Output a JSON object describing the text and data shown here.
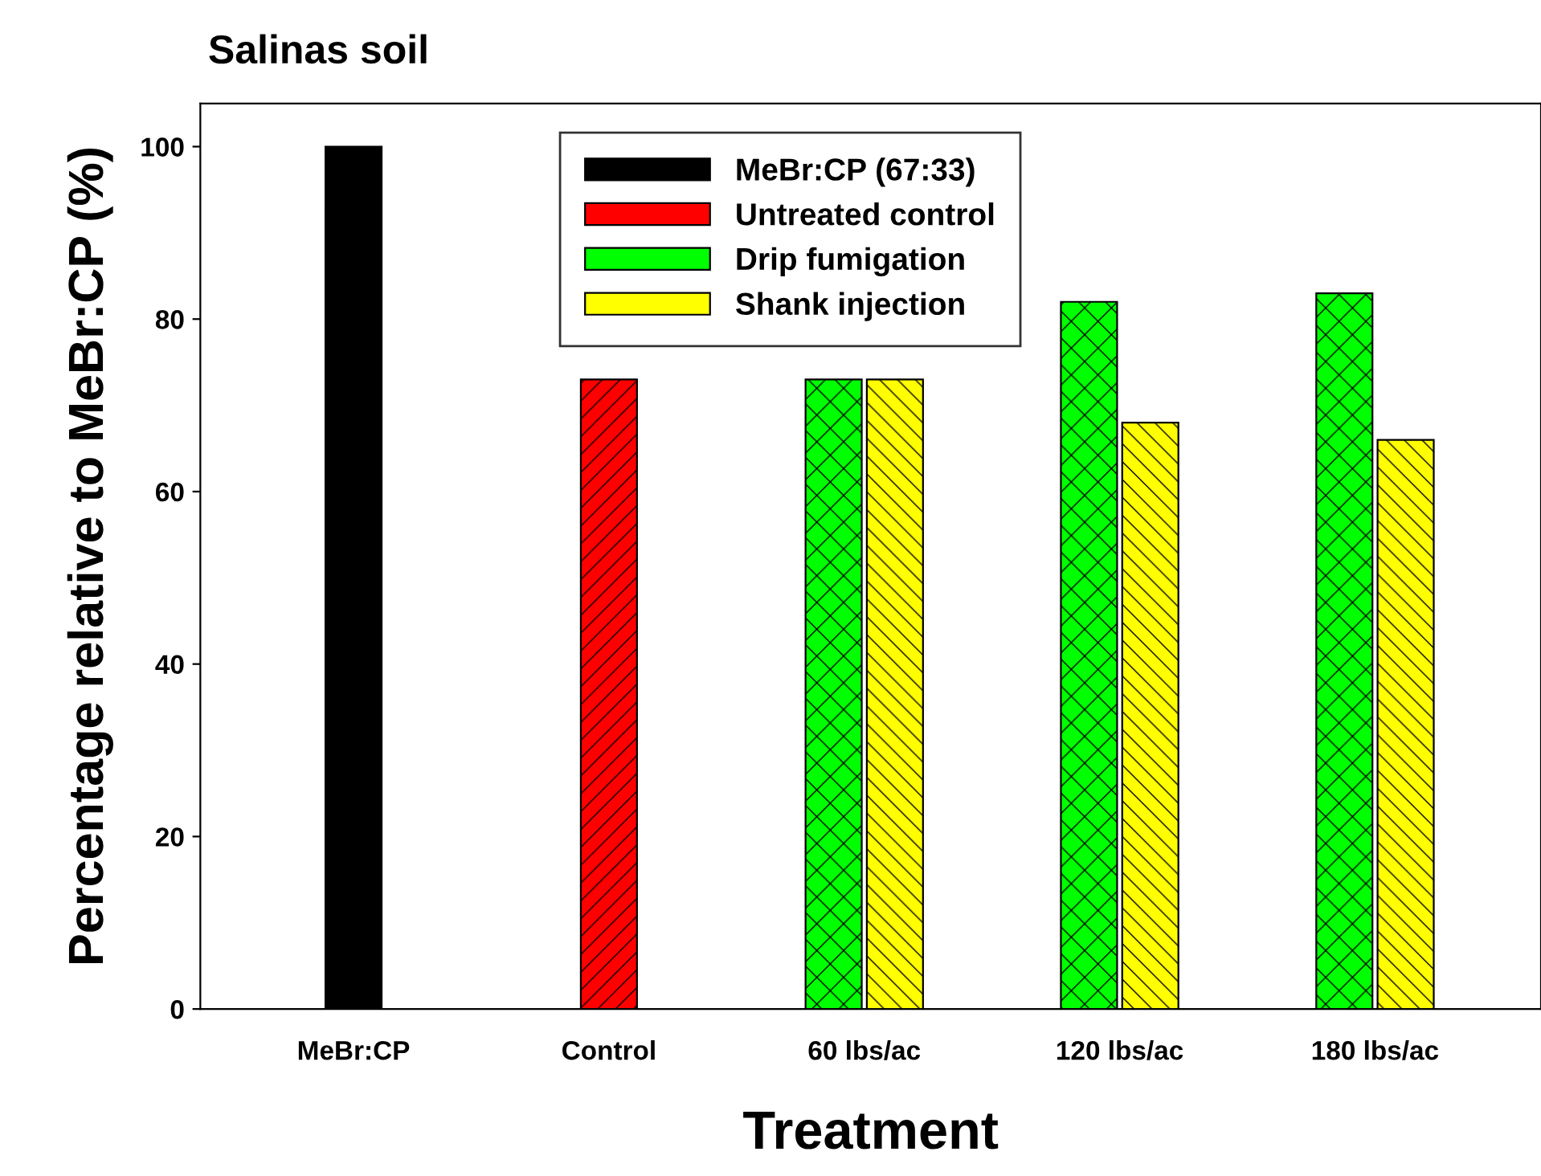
{
  "chart_data": {
    "type": "bar",
    "title": "Salinas soil",
    "xlabel": "Treatment",
    "ylabel": "Percentage relative to MeBr:CP (%)",
    "categories": [
      "MeBr:CP",
      "Control",
      "60 lbs/ac",
      "120 lbs/ac",
      "180 lbs/ac"
    ],
    "series": [
      {
        "name": "MeBr:CP (67:33)",
        "color": "#000000",
        "values": [
          100,
          null,
          null,
          null,
          null
        ]
      },
      {
        "name": "Untreated control",
        "color": "#ff0000",
        "values": [
          null,
          73,
          null,
          null,
          null
        ]
      },
      {
        "name": "Drip fumigation",
        "color": "#00ff00",
        "values": [
          null,
          null,
          73,
          82,
          83
        ]
      },
      {
        "name": "Shank injection",
        "color": "#ffff00",
        "values": [
          null,
          null,
          73,
          68,
          66
        ]
      }
    ],
    "ylim": [
      0,
      105
    ],
    "yticks": [
      0,
      20,
      40,
      60,
      80,
      100
    ],
    "legend": "top",
    "grid": false
  }
}
